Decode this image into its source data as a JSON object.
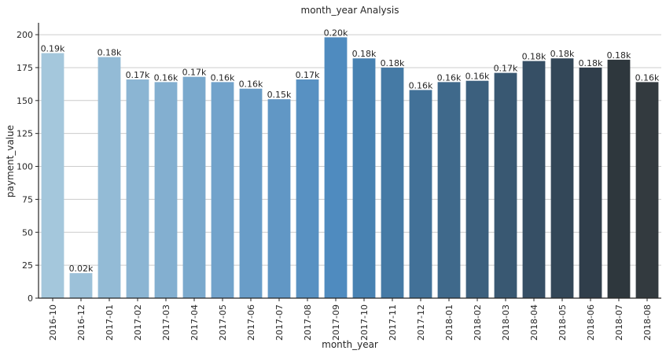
{
  "chart_data": {
    "type": "bar",
    "title": "month_year Analysis",
    "xlabel": "month_year",
    "ylabel": "payment_value",
    "categories": [
      "2016-10",
      "2016-12",
      "2017-01",
      "2017-02",
      "2017-03",
      "2017-04",
      "2017-05",
      "2017-06",
      "2017-07",
      "2017-08",
      "2017-09",
      "2017-10",
      "2017-11",
      "2017-12",
      "2018-01",
      "2018-02",
      "2018-03",
      "2018-04",
      "2018-05",
      "2018-06",
      "2018-07",
      "2018-08"
    ],
    "values": [
      186,
      19,
      183,
      166,
      164,
      168,
      164,
      159,
      151,
      166,
      198,
      182,
      175,
      158,
      164,
      165,
      171,
      180,
      182,
      175,
      181,
      164
    ],
    "data_labels": [
      "0.19k",
      "0.02k",
      "0.18k",
      "0.17k",
      "0.16k",
      "0.17k",
      "0.16k",
      "0.16k",
      "0.15k",
      "0.17k",
      "0.20k",
      "0.18k",
      "0.18k",
      "0.16k",
      "0.16k",
      "0.16k",
      "0.17k",
      "0.18k",
      "0.18k",
      "0.18k",
      "0.18k",
      "0.16k"
    ],
    "colors": [
      "#a4c7dc",
      "#9cc1d9",
      "#93bbd6",
      "#8bb5d3",
      "#83afd0",
      "#7aa9cd",
      "#72a3cb",
      "#699dc8",
      "#6197c5",
      "#5891c2",
      "#4f8bbf",
      "#4882b2",
      "#457aa5",
      "#427198",
      "#3f698b",
      "#3c607e",
      "#395872",
      "#364f65",
      "#334758",
      "#303e4b",
      "#2e373d",
      "#333a3f"
    ],
    "yticks": [
      0,
      25,
      50,
      75,
      100,
      125,
      150,
      175,
      200
    ],
    "ylim": [
      0,
      209
    ],
    "grid": "y",
    "legend": "none"
  }
}
